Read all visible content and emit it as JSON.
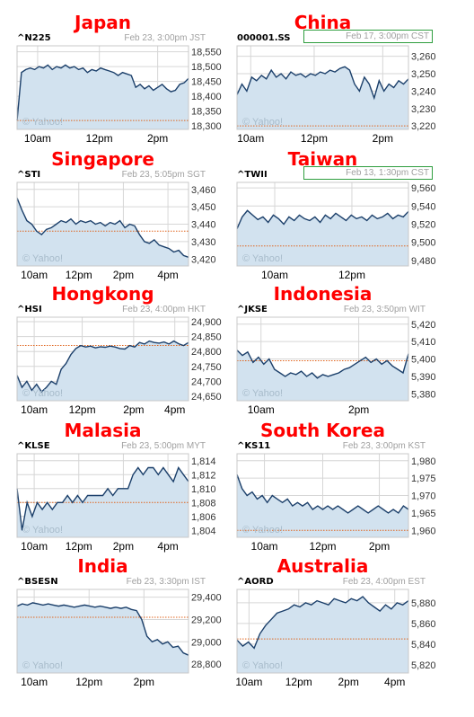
{
  "panels": [
    {
      "name": "Japan",
      "symbol": "^N225",
      "datetime": "Feb 23, 3:00pm JST",
      "boxed": false,
      "yticks": [
        18550,
        18500,
        18450,
        18400,
        18350,
        18300
      ],
      "ylim": [
        18288,
        18570
      ],
      "xticks": [
        {
          "label": "10am",
          "f": 0.12
        },
        {
          "label": "12pm",
          "f": 0.48
        },
        {
          "label": "2pm",
          "f": 0.82
        }
      ],
      "ref": 18318,
      "series": [
        18318,
        18480,
        18490,
        18495,
        18490,
        18500,
        18495,
        18505,
        18490,
        18500,
        18495,
        18505,
        18495,
        18500,
        18490,
        18495,
        18480,
        18490,
        18485,
        18495,
        18490,
        18485,
        18480,
        18470,
        18480,
        18475,
        18470,
        18430,
        18440,
        18425,
        18435,
        18420,
        18430,
        18440,
        18425,
        18415,
        18420,
        18440,
        18445,
        18460
      ]
    },
    {
      "name": "China",
      "symbol": "000001.SS",
      "datetime": "Feb 17, 3:00pm CST",
      "boxed": true,
      "yticks": [
        3260,
        3250,
        3240,
        3230,
        3220
      ],
      "ylim": [
        3218,
        3266
      ],
      "xticks": [
        {
          "label": "10am",
          "f": 0.08
        },
        {
          "label": "12pm",
          "f": 0.45
        },
        {
          "label": "2pm",
          "f": 0.85
        }
      ],
      "ref": 3220,
      "series": [
        3238,
        3244,
        3240,
        3248,
        3246,
        3249,
        3247,
        3252,
        3248,
        3250,
        3247,
        3251,
        3249,
        3250,
        3248,
        3250,
        3249,
        3251,
        3250,
        3252,
        3251,
        3253,
        3254,
        3252,
        3244,
        3240,
        3248,
        3244,
        3236,
        3246,
        3240,
        3244,
        3242,
        3246,
        3244,
        3247
      ]
    },
    {
      "name": "Singapore",
      "symbol": "^STI",
      "datetime": "Feb 23, 5:05pm SGT",
      "boxed": false,
      "yticks": [
        3460,
        3450,
        3440,
        3430,
        3420
      ],
      "ylim": [
        3416,
        3464
      ],
      "xticks": [
        {
          "label": "10am",
          "f": 0.1
        },
        {
          "label": "12pm",
          "f": 0.36
        },
        {
          "label": "2pm",
          "f": 0.62
        },
        {
          "label": "4pm",
          "f": 0.88
        }
      ],
      "ref": 3436,
      "series": [
        3455,
        3448,
        3442,
        3440,
        3436,
        3434,
        3437,
        3438,
        3440,
        3442,
        3441,
        3443,
        3440,
        3442,
        3441,
        3442,
        3440,
        3441,
        3439,
        3441,
        3440,
        3442,
        3438,
        3440,
        3439,
        3434,
        3430,
        3429,
        3431,
        3428,
        3427,
        3426,
        3424,
        3425,
        3422,
        3421
      ]
    },
    {
      "name": "Taiwan",
      "symbol": "^TWII",
      "datetime": "Feb 13, 1:30pm CST",
      "boxed": true,
      "yticks": [
        9560,
        9540,
        9520,
        9500,
        9480
      ],
      "ylim": [
        9474,
        9566
      ],
      "xticks": [
        {
          "label": "10am",
          "f": 0.22
        },
        {
          "label": "12pm",
          "f": 0.67
        }
      ],
      "ref": 9496,
      "series": [
        9515,
        9528,
        9535,
        9530,
        9525,
        9528,
        9522,
        9530,
        9526,
        9520,
        9528,
        9524,
        9530,
        9526,
        9524,
        9528,
        9522,
        9530,
        9526,
        9532,
        9528,
        9524,
        9530,
        9526,
        9528,
        9524,
        9530,
        9526,
        9528,
        9532,
        9526,
        9530,
        9528,
        9534
      ]
    },
    {
      "name": "Hongkong",
      "symbol": "^HSI",
      "datetime": "Feb 23, 4:00pm HKT",
      "boxed": false,
      "yticks": [
        24900,
        24850,
        24800,
        24750,
        24700,
        24650
      ],
      "ylim": [
        24635,
        24915
      ],
      "xticks": [
        {
          "label": "10am",
          "f": 0.1
        },
        {
          "label": "12pm",
          "f": 0.38
        },
        {
          "label": "2pm",
          "f": 0.68
        },
        {
          "label": "4pm",
          "f": 0.92
        }
      ],
      "ref": 24820,
      "series": [
        24720,
        24680,
        24700,
        24670,
        24690,
        24665,
        24680,
        24700,
        24690,
        24740,
        24760,
        24790,
        24810,
        24820,
        24815,
        24818,
        24812,
        24816,
        24814,
        24818,
        24815,
        24810,
        24808,
        24820,
        24815,
        24830,
        24825,
        24835,
        24830,
        24828,
        24832,
        24825,
        24835,
        24826,
        24820,
        24830
      ]
    },
    {
      "name": "Indonesia",
      "symbol": "^JKSE",
      "datetime": "Feb 23, 3:50pm WIT",
      "boxed": false,
      "yticks": [
        5420,
        5410,
        5400,
        5390,
        5380
      ],
      "ylim": [
        5376,
        5424
      ],
      "xticks": [
        {
          "label": "10am",
          "f": 0.14
        },
        {
          "label": "2pm",
          "f": 0.71
        }
      ],
      "ref": 5399,
      "series": [
        5405,
        5402,
        5404,
        5398,
        5401,
        5397,
        5400,
        5394,
        5392,
        5390,
        5392,
        5391,
        5393,
        5390,
        5392,
        5389,
        5391,
        5390,
        5391,
        5392,
        5394,
        5395,
        5397,
        5399,
        5401,
        5398,
        5400,
        5397,
        5399,
        5396,
        5394,
        5392,
        5403
      ]
    },
    {
      "name": "Malasia",
      "symbol": "^KLSE",
      "datetime": "Feb 23, 5:00pm MYT",
      "boxed": false,
      "yticks": [
        1814,
        1812,
        1810,
        1808,
        1806,
        1804
      ],
      "ylim": [
        1803,
        1815
      ],
      "xticks": [
        {
          "label": "10am",
          "f": 0.1
        },
        {
          "label": "12pm",
          "f": 0.36
        },
        {
          "label": "2pm",
          "f": 0.62
        },
        {
          "label": "4pm",
          "f": 0.88
        }
      ],
      "ref": 1808,
      "series": [
        1810,
        1804,
        1808,
        1806,
        1808,
        1807,
        1808,
        1807,
        1808,
        1808,
        1809,
        1808,
        1809,
        1808,
        1809,
        1809,
        1809,
        1809,
        1810,
        1809,
        1810,
        1810,
        1810,
        1812,
        1813,
        1812,
        1813,
        1813,
        1812,
        1813,
        1812,
        1811,
        1813,
        1812,
        1811
      ]
    },
    {
      "name": "South Korea",
      "symbol": "^KS11",
      "datetime": "Feb 23, 3:00pm KST",
      "boxed": false,
      "yticks": [
        1980,
        1975,
        1970,
        1965,
        1960
      ],
      "ylim": [
        1958,
        1982
      ],
      "xticks": [
        {
          "label": "10am",
          "f": 0.16
        },
        {
          "label": "12pm",
          "f": 0.5
        },
        {
          "label": "2pm",
          "f": 0.83
        }
      ],
      "ref": 1960,
      "series": [
        1976,
        1972,
        1970,
        1971,
        1969,
        1970,
        1968,
        1970,
        1969,
        1968,
        1969,
        1967,
        1968,
        1967,
        1968,
        1966,
        1967,
        1966,
        1967,
        1966,
        1967,
        1966,
        1965,
        1966,
        1967,
        1966,
        1965,
        1966,
        1967,
        1966,
        1965,
        1966,
        1965,
        1967,
        1966
      ]
    },
    {
      "name": "India",
      "symbol": "^BSESN",
      "datetime": "Feb 23, 3:30pm IST",
      "boxed": false,
      "yticks": [
        29400,
        29200,
        29000,
        28800
      ],
      "ylim": [
        28720,
        29470
      ],
      "xticks": [
        {
          "label": "10am",
          "f": 0.1
        },
        {
          "label": "12pm",
          "f": 0.42
        },
        {
          "label": "2pm",
          "f": 0.74
        }
      ],
      "ref": 29220,
      "series": [
        29320,
        29340,
        29330,
        29350,
        29340,
        29330,
        29340,
        29330,
        29320,
        29330,
        29320,
        29310,
        29320,
        29330,
        29320,
        29310,
        29320,
        29310,
        29300,
        29310,
        29300,
        29310,
        29290,
        29280,
        29200,
        29050,
        29000,
        29020,
        28980,
        29000,
        28950,
        28960,
        28900,
        28880
      ]
    },
    {
      "name": "Australia",
      "symbol": "^AORD",
      "datetime": "Feb 23, 4:00pm EST",
      "boxed": false,
      "yticks": [
        5880,
        5860,
        5840,
        5820
      ],
      "ylim": [
        5812,
        5893
      ],
      "xticks": [
        {
          "label": "10am",
          "f": 0.07
        },
        {
          "label": "12pm",
          "f": 0.36
        },
        {
          "label": "2pm",
          "f": 0.65
        },
        {
          "label": "4pm",
          "f": 0.92
        }
      ],
      "ref": 5845,
      "series": [
        5844,
        5838,
        5842,
        5836,
        5850,
        5858,
        5864,
        5870,
        5872,
        5874,
        5878,
        5876,
        5880,
        5878,
        5882,
        5880,
        5878,
        5884,
        5882,
        5880,
        5884,
        5882,
        5886,
        5880,
        5876,
        5872,
        5878,
        5874,
        5880,
        5878,
        5882
      ]
    }
  ],
  "watermark": "© Yahoo!",
  "colors": {
    "line": "#1b3f6a",
    "fill": "#d2e2ef",
    "ref": "#e0651e",
    "grid": "#d6d6d6",
    "title": "#ff0000"
  }
}
